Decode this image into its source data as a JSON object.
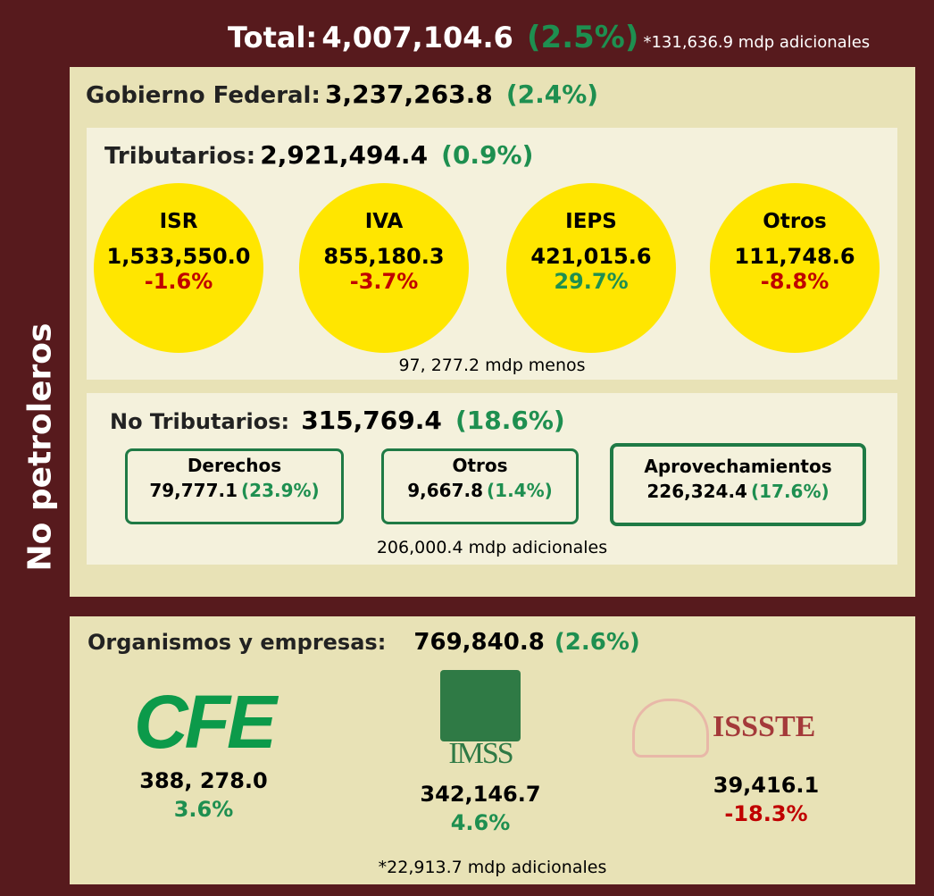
{
  "side_label": "No petroleros",
  "total": {
    "label": "Total:",
    "value": "4,007,104.6",
    "change": "(2.5%)",
    "note": "*131,636.9 mdp adicionales"
  },
  "gobierno_federal": {
    "label": "Gobierno Federal:",
    "value": "3,237,263.8",
    "change": "(2.4%)"
  },
  "tributarios": {
    "label": "Tributarios:",
    "value": "2,921,494.4",
    "change": "(0.9%)",
    "items": [
      {
        "name": "ISR",
        "value": "1,533,550.0",
        "change": "-1.6%",
        "color": "#c00000"
      },
      {
        "name": "IVA",
        "value": "855,180.3",
        "change": "-3.7%",
        "color": "#c00000"
      },
      {
        "name": "IEPS",
        "value": "421,015.6",
        "change": "29.7%",
        "color": "#1e8f50"
      },
      {
        "name": "Otros",
        "value": "111,748.6",
        "change": "-8.8%",
        "color": "#c00000"
      }
    ],
    "note": "97, 277.2 mdp menos"
  },
  "no_tributarios": {
    "label": "No Tributarios:",
    "value": "315,769.4",
    "change": "(18.6%)",
    "items": [
      {
        "name": "Derechos",
        "value": "79,777.1",
        "change": "(23.9%)"
      },
      {
        "name": "Otros",
        "value": "9,667.8",
        "change": "(1.4%)"
      },
      {
        "name": "Aprovechamientos",
        "value": "226,324.4",
        "change": "(17.6%)"
      }
    ],
    "note": "206,000.4  mdp adicionales"
  },
  "organismos": {
    "label": "Organismos y empresas:",
    "value": "769,840.8",
    "change": "(2.6%)",
    "items": [
      {
        "logo": "CFE",
        "value": "388, 278.0",
        "change": "3.6%",
        "color": "#1e8f50"
      },
      {
        "logo": "IMSS",
        "value": "342,146.7",
        "change": "4.6%",
        "color": "#1e8f50"
      },
      {
        "logo": "ISSSTE",
        "value": "39,416.1",
        "change": "-18.3%",
        "color": "#c00000"
      }
    ],
    "note": "*22,913.7 mdp adicionales"
  }
}
